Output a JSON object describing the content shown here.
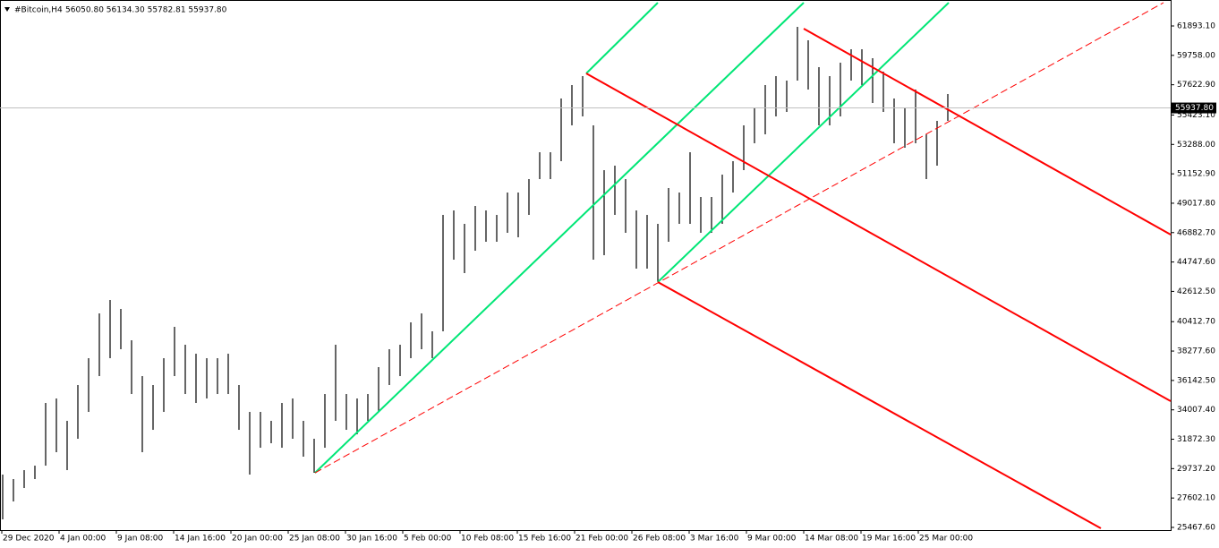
{
  "chart_data": {
    "type": "ohlc",
    "title": "#Bitcoin,H4",
    "subtitle": "56050.80 56134.30 55782.81 55937.80",
    "color": "#000000",
    "x": [
      1.5,
      7.5,
      13.5,
      19.5,
      25.5,
      31.5,
      37.5,
      43.5,
      49.5,
      55.5,
      61.5,
      67.5,
      73.5,
      79.5,
      85.5,
      91.5,
      97.5,
      103.5,
      109.5,
      115.5,
      121.5,
      127.5,
      133.5,
      139.5,
      145.5,
      151.5,
      157.5,
      163.5,
      169.5,
      175.5,
      181.5,
      187.5,
      193.5,
      199.5,
      205.5,
      211.5,
      217.5,
      223.5,
      229.5,
      235.5,
      241.5,
      247.5,
      253.5,
      259.5,
      265.5,
      271.5,
      277.5,
      283.5,
      289.5,
      295.5,
      301.5,
      307.5,
      313.5,
      319.5,
      325.5,
      331.5,
      337.5,
      343.5,
      349.5,
      355.5,
      361.5,
      367.5,
      373.5,
      379.5,
      385.5,
      391.5,
      397.5,
      403.5,
      409.5,
      415.5,
      421.5,
      427.5,
      433.5,
      439.5,
      445.5,
      451.5,
      457.5,
      463.5,
      469.5,
      475.5,
      481.5,
      487.5,
      493.5,
      499.5,
      505.5,
      511.5,
      517.5,
      523.5,
      529.5
    ],
    "high": [
      29304,
      28978,
      29629,
      29954,
      34508,
      34833,
      33207,
      35809,
      37760,
      41013,
      41989,
      41338,
      39061,
      36459,
      35809,
      37760,
      40037,
      38736,
      38085,
      37760,
      37760,
      38085,
      35809,
      33857,
      33857,
      33207,
      34508,
      34833,
      33207,
      31906,
      35158,
      38736,
      35158,
      34833,
      35158,
      37110,
      38411,
      38736,
      40362,
      41013,
      39712,
      48168,
      48493,
      47518,
      48819,
      48493,
      48168,
      49794,
      49794,
      50770,
      52721,
      52721,
      56625,
      57600,
      58251,
      54673,
      51420,
      51746,
      50770,
      48493,
      48168,
      47518,
      50120,
      49794,
      52721,
      49469,
      49469,
      51095,
      52071,
      54673,
      55974,
      57600,
      58251,
      57925,
      61829,
      60853,
      58901,
      58251,
      59227,
      60202,
      60202,
      59552,
      58576,
      56625,
      55974,
      57275,
      54022,
      54998,
      56950
    ],
    "low": [
      26051,
      27352,
      28328,
      28978,
      29954,
      30930,
      29629,
      31906,
      33857,
      36459,
      37760,
      38411,
      35158,
      30930,
      32556,
      33857,
      36459,
      35158,
      34508,
      34833,
      35158,
      35158,
      32556,
      29304,
      31255,
      31581,
      31255,
      31906,
      30605,
      29434,
      31255,
      33207,
      32556,
      32231,
      33207,
      33857,
      35809,
      36459,
      37760,
      38411,
      37760,
      39712,
      44916,
      43940,
      45566,
      46217,
      46217,
      46867,
      46542,
      48168,
      50770,
      50770,
      52071,
      54673,
      55324,
      44916,
      45241,
      48168,
      46867,
      44265,
      44265,
      43289,
      46217,
      47518,
      47518,
      46867,
      46867,
      47518,
      49794,
      51420,
      53372,
      54022,
      55324,
      55649,
      57925,
      57275,
      54673,
      54673,
      55324,
      57925,
      57600,
      56299,
      55649,
      53372,
      53047,
      53372,
      50770,
      51746,
      54998
    ],
    "last": {
      "value": 55937.8,
      "label": "55937.80"
    },
    "ylim": [
      25272,
      63780
    ],
    "yticks": [
      {
        "value": 61893.1,
        "label": "61893.10"
      },
      {
        "value": 59758.0,
        "label": "59758.00"
      },
      {
        "value": 57622.9,
        "label": "57622.90"
      },
      {
        "value": 55423.1,
        "label": "55423.10"
      },
      {
        "value": 53288.0,
        "label": "53288.00"
      },
      {
        "value": 51152.9,
        "label": "51152.90"
      },
      {
        "value": 49017.8,
        "label": "49017.80"
      },
      {
        "value": 46882.7,
        "label": "46882.70"
      },
      {
        "value": 44747.6,
        "label": "44747.60"
      },
      {
        "value": 42612.5,
        "label": "42612.50"
      },
      {
        "value": 40412.7,
        "label": "40412.70"
      },
      {
        "value": 38277.6,
        "label": "38277.60"
      },
      {
        "value": 36142.5,
        "label": "36142.50"
      },
      {
        "value": 34007.4,
        "label": "34007.40"
      },
      {
        "value": 31872.3,
        "label": "31872.30"
      },
      {
        "value": 29737.2,
        "label": "29737.20"
      },
      {
        "value": 27602.1,
        "label": "27602.10"
      },
      {
        "value": 25467.6,
        "label": "25467.60"
      }
    ],
    "xlim": [
      0,
      654
    ],
    "xticks": [
      {
        "value": 1,
        "label": "29 Dec 2020"
      },
      {
        "value": 33,
        "label": "4 Jan 00:00"
      },
      {
        "value": 65,
        "label": "9 Jan 08:00"
      },
      {
        "value": 97,
        "label": "14 Jan 16:00"
      },
      {
        "value": 129,
        "label": "20 Jan 00:00"
      },
      {
        "value": 161,
        "label": "25 Jan 08:00"
      },
      {
        "value": 193,
        "label": "30 Jan 16:00"
      },
      {
        "value": 225,
        "label": "5 Feb 00:00"
      },
      {
        "value": 257,
        "label": "10 Feb 08:00"
      },
      {
        "value": 289,
        "label": "15 Feb 16:00"
      },
      {
        "value": 321,
        "label": "21 Feb 00:00"
      },
      {
        "value": 353,
        "label": "26 Feb 08:00"
      },
      {
        "value": 385,
        "label": "3 Mar 16:00"
      },
      {
        "value": 417,
        "label": "9 Mar 00:00"
      },
      {
        "value": 449,
        "label": "14 Mar 08:00"
      },
      {
        "value": 481,
        "label": "19 Mar 16:00"
      },
      {
        "value": 513,
        "label": "25 Mar 00:00"
      }
    ],
    "lines": [
      {
        "color": "#00e676",
        "dash": false,
        "points": [
          [
            176,
            29434
          ],
          [
            449,
            63585
          ]
        ]
      },
      {
        "color": "#00e676",
        "dash": false,
        "points": [
          [
            327.5,
            58446
          ],
          [
            367.5,
            63585
          ]
        ]
      },
      {
        "color": "#00e676",
        "dash": false,
        "points": [
          [
            367.5,
            43289
          ],
          [
            530,
            63585
          ]
        ]
      },
      {
        "color": "#ff0000",
        "dash": false,
        "points": [
          [
            449,
            61698
          ],
          [
            654,
            46737
          ]
        ]
      },
      {
        "color": "#ff0000",
        "dash": false,
        "points": [
          [
            327.5,
            58446
          ],
          [
            654,
            34638
          ]
        ]
      },
      {
        "color": "#ff0000",
        "dash": false,
        "points": [
          [
            367.5,
            43289
          ],
          [
            615,
            25400
          ]
        ]
      },
      {
        "color": "#ff0000",
        "dash": true,
        "points": [
          [
            176,
            29434
          ],
          [
            650,
            63585
          ]
        ]
      }
    ]
  }
}
